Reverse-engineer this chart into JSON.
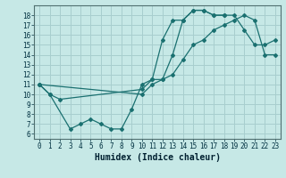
{
  "title": "",
  "xlabel": "Humidex (Indice chaleur)",
  "bg_color": "#c6e8e6",
  "grid_color": "#a8cece",
  "line_color": "#1a7070",
  "series": [
    {
      "x": [
        0,
        1,
        2,
        10,
        11,
        12,
        13,
        14,
        15,
        16,
        17,
        18,
        19,
        20,
        21,
        22,
        23
      ],
      "y": [
        11,
        10,
        9.5,
        10.5,
        11.5,
        15.5,
        17.5,
        17.5,
        18.5,
        18.5,
        18,
        18,
        18,
        16.5,
        15,
        15,
        15.5
      ]
    },
    {
      "x": [
        0,
        1,
        3,
        4,
        5,
        6,
        7,
        8,
        9,
        10,
        11,
        12,
        13,
        14,
        15,
        16,
        17,
        18
      ],
      "y": [
        11,
        10,
        6.5,
        7,
        7.5,
        7,
        6.5,
        6.5,
        8.5,
        11,
        11.5,
        11.5,
        14,
        17.5,
        18.5,
        18.5,
        18,
        18
      ]
    },
    {
      "x": [
        0,
        10,
        11,
        12,
        13,
        14,
        15,
        16,
        17,
        18,
        19,
        20,
        21,
        22,
        23
      ],
      "y": [
        11,
        10,
        11,
        11.5,
        12,
        13.5,
        15,
        15.5,
        16.5,
        17,
        17.5,
        18,
        17.5,
        14,
        14
      ]
    }
  ],
  "xlim": [
    -0.5,
    23.5
  ],
  "ylim": [
    5.5,
    19
  ],
  "yticks": [
    6,
    7,
    8,
    9,
    10,
    11,
    12,
    13,
    14,
    15,
    16,
    17,
    18
  ],
  "xticks": [
    0,
    1,
    2,
    3,
    4,
    5,
    6,
    7,
    8,
    9,
    10,
    11,
    12,
    13,
    14,
    15,
    16,
    17,
    18,
    19,
    20,
    21,
    22,
    23
  ],
  "tick_fontsize": 5.5,
  "xlabel_fontsize": 7
}
